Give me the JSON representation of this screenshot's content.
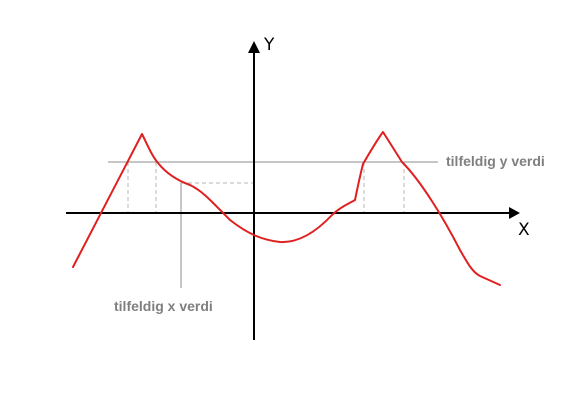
{
  "diagram": {
    "x_axis_label": "X",
    "y_axis_label": "Y",
    "annotation_y": "tilfeldig y verdi",
    "annotation_x": "tilfeldig x verdi"
  },
  "colors": {
    "curve": "#e02020",
    "axes": "#000000",
    "guide": "#8c8c8c",
    "dashed": "#b5b5b5",
    "annotation_text": "#7f7f7f"
  }
}
